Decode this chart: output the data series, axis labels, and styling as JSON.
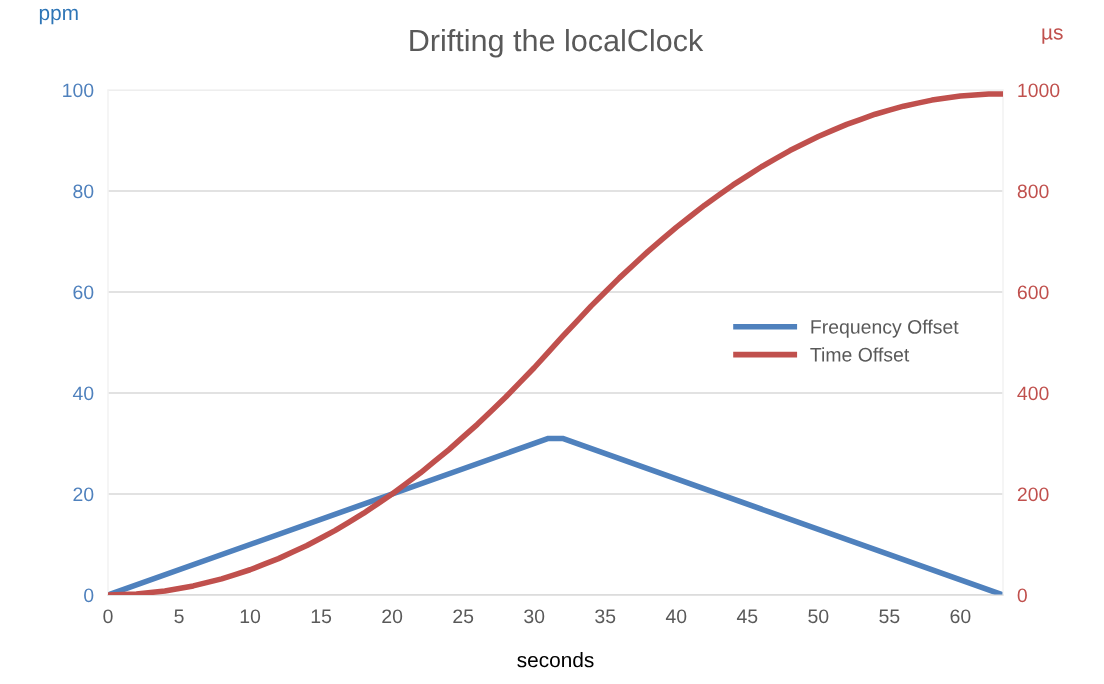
{
  "chart_data": {
    "type": "line",
    "title": "Drifting the localClock",
    "xlabel": "seconds",
    "ylabel": "ppm",
    "y2label": "µs",
    "xlim": [
      0,
      63
    ],
    "xticks": [
      0,
      5,
      10,
      15,
      20,
      25,
      30,
      35,
      40,
      45,
      50,
      55,
      60
    ],
    "ylim": [
      0,
      100
    ],
    "yticks": [
      0,
      20,
      40,
      60,
      80,
      100
    ],
    "y2lim": [
      0,
      1000
    ],
    "y2ticks": [
      0,
      200,
      400,
      600,
      800,
      1000
    ],
    "grid": "y",
    "legend": "right",
    "marker": "none",
    "line_style": "solid",
    "series": [
      {
        "name": "Frequency Offset",
        "color": "#4f81bd",
        "x": [
          0,
          31,
          32,
          63
        ],
        "values": [
          0,
          31,
          31,
          0
        ]
      },
      {
        "name": "Time Offset",
        "color": "#c0504d",
        "axis": "y2",
        "x": [
          0,
          1,
          2,
          3,
          4,
          5,
          6,
          7,
          8,
          9,
          10,
          11,
          12,
          13,
          14,
          15,
          16,
          17,
          18,
          19,
          20,
          21,
          22,
          23,
          24,
          25,
          26,
          27,
          28,
          29,
          30,
          31,
          32,
          33,
          34,
          35,
          36,
          37,
          38,
          39,
          40,
          41,
          42,
          43,
          44,
          45,
          46,
          47,
          48,
          49,
          50,
          51,
          52,
          53,
          54,
          55,
          56,
          57,
          58,
          59,
          60,
          61,
          62,
          63
        ],
        "values": [
          0,
          1,
          2,
          5,
          8,
          13,
          18,
          25,
          32,
          41,
          50,
          61,
          72,
          85,
          98,
          113,
          128,
          145,
          162,
          181,
          200,
          221,
          242,
          265,
          288,
          313,
          338,
          365,
          392,
          421,
          450,
          481,
          512,
          542,
          572,
          600,
          628,
          654,
          680,
          704,
          728,
          750,
          772,
          792,
          812,
          830,
          848,
          864,
          880,
          894,
          908,
          920,
          932,
          942,
          952,
          960,
          968,
          974,
          980,
          984,
          988,
          990,
          992,
          992
        ]
      }
    ]
  }
}
